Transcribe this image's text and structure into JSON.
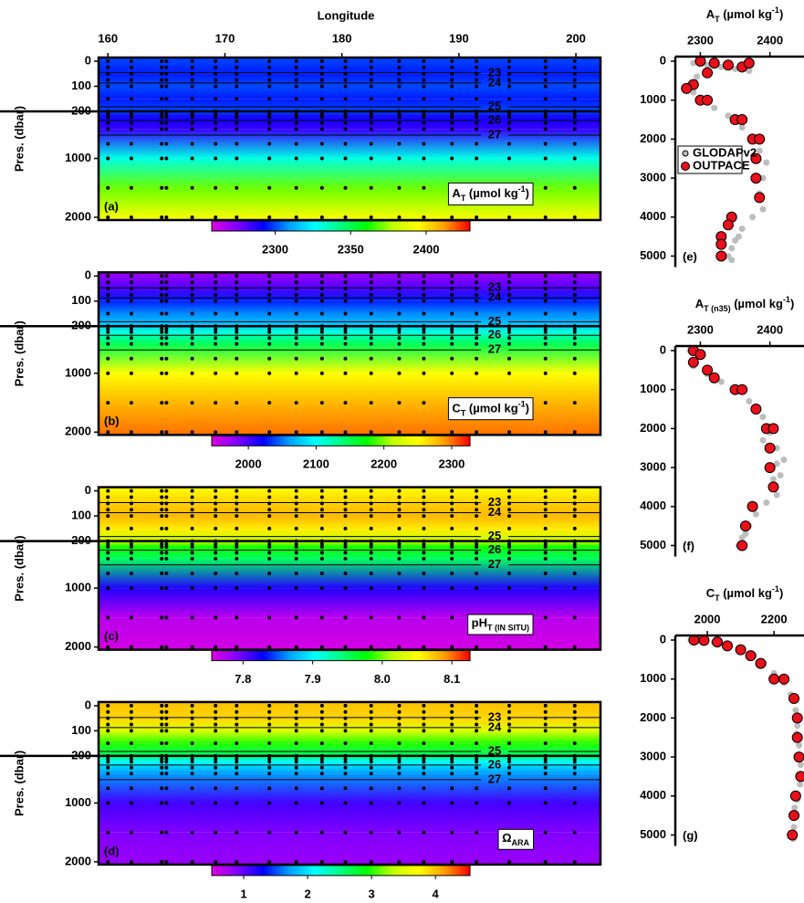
{
  "chart_data": [
    {
      "type": "contour",
      "label": "(a)",
      "var_label": [
        {
          "text": "A"
        },
        {
          "text": "T",
          "style": "sub"
        },
        {
          "text": " (µmol kg"
        },
        {
          "text": "-1",
          "style": "sup"
        },
        {
          "text": ")"
        }
      ],
      "xlabel": "Longitude",
      "xlim": [
        159.2,
        202.1
      ],
      "xticks": [
        160,
        170,
        180,
        190,
        200
      ],
      "ylabel": "Pres. (dbar)",
      "ylim": [
        0,
        2000
      ],
      "ybreak": 200,
      "yticks": [
        0,
        100,
        200,
        1000,
        2000
      ],
      "stations": [
        160,
        162,
        164.6,
        165,
        167.2,
        169.2,
        171,
        173.8,
        176.1,
        178.3,
        180.3,
        182.5,
        184.9,
        187,
        189.4,
        191.5,
        194.3,
        197.4,
        199.9
      ],
      "sample_pressures": [
        0,
        25,
        50,
        75,
        100,
        150,
        200,
        250,
        300,
        400,
        500,
        750,
        1000,
        1500,
        2000
      ],
      "field": {
        "pressure": [
          0,
          50,
          100,
          150,
          200,
          300,
          500,
          1000,
          1500,
          2000
        ],
        "values": [
          2300,
          2295,
          2300,
          2295,
          2300,
          2290,
          2285,
          2330,
          2370,
          2395
        ]
      },
      "isopycnals": [
        {
          "sigma": 23,
          "pressure": 47
        },
        {
          "sigma": 24,
          "pressure": 87
        },
        {
          "sigma": 25,
          "pressure": 182
        },
        {
          "sigma": 26,
          "pressure": 355
        },
        {
          "sigma": 27,
          "pressure": 603
        }
      ],
      "colormap": [
        "#e000e0",
        "#8000ff",
        "#0000ff",
        "#00a0ff",
        "#00ffff",
        "#00ff80",
        "#00ff00",
        "#c0ff00",
        "#ffff00",
        "#ffa000",
        "#ff0000"
      ],
      "clim": [
        2258,
        2429
      ],
      "cticks": [
        2300,
        2350,
        2400
      ]
    },
    {
      "type": "contour",
      "label": "(b)",
      "var_label": [
        {
          "text": "C"
        },
        {
          "text": "T",
          "style": "sub"
        },
        {
          "text": " (µmol kg"
        },
        {
          "text": "-1",
          "style": "sup"
        },
        {
          "text": ")"
        }
      ],
      "xlim": [
        159.2,
        202.1
      ],
      "ylabel": "Pres. (dbar)",
      "ylim": [
        0,
        2000
      ],
      "ybreak": 200,
      "yticks": [
        0,
        100,
        200,
        1000,
        2000
      ],
      "stations": [
        160,
        162,
        164.6,
        165,
        167.2,
        169.2,
        171,
        173.8,
        176.1,
        178.3,
        180.3,
        182.5,
        184.9,
        187,
        189.4,
        191.5,
        194.3,
        197.4,
        199.9
      ],
      "sample_pressures": [
        0,
        25,
        50,
        75,
        100,
        150,
        200,
        250,
        300,
        400,
        500,
        750,
        1000,
        1500,
        2000
      ],
      "field": {
        "pressure": [
          0,
          50,
          100,
          150,
          200,
          300,
          500,
          1000,
          1500,
          2000
        ],
        "values": [
          1970,
          2000,
          2030,
          2055,
          2080,
          2110,
          2150,
          2250,
          2280,
          2300
        ]
      },
      "isopycnals": [
        {
          "sigma": 23,
          "pressure": 47
        },
        {
          "sigma": 24,
          "pressure": 87
        },
        {
          "sigma": 25,
          "pressure": 182
        },
        {
          "sigma": 26,
          "pressure": 355
        },
        {
          "sigma": 27,
          "pressure": 603
        }
      ],
      "colormap": [
        "#e000e0",
        "#8000ff",
        "#0000ff",
        "#00a0ff",
        "#00ffff",
        "#00ff80",
        "#00ff00",
        "#c0ff00",
        "#ffff00",
        "#ffa000",
        "#ff0000"
      ],
      "clim": [
        1946,
        2327
      ],
      "cticks": [
        2000,
        2100,
        2200,
        2300
      ]
    },
    {
      "type": "contour",
      "label": "(c)",
      "var_label": [
        {
          "text": "pH"
        },
        {
          "text": "T (IN SITU)",
          "style": "sub"
        }
      ],
      "xlim": [
        159.2,
        202.1
      ],
      "ylabel": "Pres. (dbar)",
      "ylim": [
        0,
        2000
      ],
      "ybreak": 200,
      "yticks": [
        0,
        100,
        200,
        1000,
        2000
      ],
      "stations": [
        160,
        162,
        164.6,
        165,
        167.2,
        169.2,
        171,
        173.8,
        176.1,
        178.3,
        180.3,
        182.5,
        184.9,
        187,
        189.4,
        191.5,
        194.3,
        197.4,
        199.9
      ],
      "sample_pressures": [
        0,
        25,
        50,
        75,
        100,
        150,
        200,
        250,
        300,
        400,
        500,
        750,
        1000,
        1500,
        2000
      ],
      "field": {
        "pressure": [
          0,
          50,
          100,
          150,
          200,
          300,
          500,
          1000,
          1500,
          2000
        ],
        "values": [
          8.05,
          8.07,
          8.08,
          8.06,
          8.02,
          7.98,
          7.95,
          7.82,
          7.77,
          7.76
        ]
      },
      "isopycnals": [
        {
          "sigma": 23,
          "pressure": 47
        },
        {
          "sigma": 24,
          "pressure": 87
        },
        {
          "sigma": 25,
          "pressure": 182
        },
        {
          "sigma": 26,
          "pressure": 355
        },
        {
          "sigma": 27,
          "pressure": 603
        }
      ],
      "colormap": [
        "#e000e0",
        "#8000ff",
        "#0000ff",
        "#00a0ff",
        "#00ffff",
        "#00ff80",
        "#00ff00",
        "#c0ff00",
        "#ffff00",
        "#ffa000",
        "#ff0000"
      ],
      "clim": [
        7.755,
        8.126
      ],
      "cticks": [
        7.8,
        7.9,
        {
          "value": 8,
          "label": "8.0"
        },
        8.1
      ]
    },
    {
      "type": "contour",
      "label": "(d)",
      "var_label": [
        {
          "text": "Ω"
        },
        {
          "text": "ARA",
          "style": "sub"
        }
      ],
      "xlim": [
        159.2,
        202.1
      ],
      "ylabel": "Pres. (dbar)",
      "ylim": [
        0,
        2000
      ],
      "ybreak": 200,
      "yticks": [
        0,
        100,
        200,
        1000,
        2000
      ],
      "stations": [
        160,
        162,
        164.6,
        165,
        167.2,
        169.2,
        171,
        173.8,
        176.1,
        178.3,
        180.3,
        182.5,
        184.9,
        187,
        189.4,
        191.5,
        194.3,
        197.4,
        199.9
      ],
      "sample_pressures": [
        0,
        25,
        50,
        75,
        100,
        150,
        200,
        250,
        300,
        400,
        500,
        750,
        1000,
        1500,
        2000
      ],
      "field": {
        "pressure": [
          0,
          50,
          100,
          150,
          200,
          300,
          500,
          1000,
          1500,
          2000
        ],
        "values": [
          4.0,
          3.9,
          3.5,
          3.0,
          2.6,
          2.1,
          1.7,
          1.1,
          0.9,
          0.8
        ]
      },
      "isopycnals": [
        {
          "sigma": 23,
          "pressure": 47
        },
        {
          "sigma": 24,
          "pressure": 87
        },
        {
          "sigma": 25,
          "pressure": 182
        },
        {
          "sigma": 26,
          "pressure": 355
        },
        {
          "sigma": 27,
          "pressure": 603
        }
      ],
      "colormap": [
        "#e000e0",
        "#8000ff",
        "#0000ff",
        "#00a0ff",
        "#00ffff",
        "#00ff80",
        "#00ff00",
        "#c0ff00",
        "#ffff00",
        "#ffa000",
        "#ff0000"
      ],
      "clim": [
        0.5,
        4.54
      ],
      "cticks": [
        1,
        2,
        3,
        4
      ]
    },
    {
      "type": "scatter",
      "label": "(e)",
      "title": [
        {
          "text": "A"
        },
        {
          "text": "T",
          "style": "sub"
        },
        {
          "text": " (µmol kg"
        },
        {
          "text": "-1",
          "style": "sup"
        },
        {
          "text": ")"
        }
      ],
      "xlim": [
        2264,
        2449
      ],
      "xticks": [
        2300,
        2400
      ],
      "ylim": [
        0,
        5235
      ],
      "yticks": [
        0,
        1000,
        2000,
        3000,
        4000,
        5000
      ],
      "legend": "center-left",
      "series": [
        {
          "name": "GLODAPv2",
          "color": "#bdbdbd",
          "x": [
            2290,
            2310,
            2330,
            2350,
            2370,
            2295,
            2285,
            2290,
            2300,
            2320,
            2340,
            2360,
            2375,
            2385,
            2395,
            2390,
            2385,
            2390,
            2375,
            2360,
            2350,
            2345,
            2340,
            2345,
            2355
          ],
          "y": [
            50,
            100,
            150,
            200,
            250,
            400,
            600,
            800,
            1000,
            1200,
            1400,
            1700,
            2000,
            2300,
            2600,
            3000,
            3400,
            3800,
            4000,
            4300,
            4600,
            4800,
            5000,
            5100,
            4500
          ]
        },
        {
          "name": "OUTPACE",
          "color": "#e8101a",
          "x": [
            2300,
            2320,
            2340,
            2360,
            2370,
            2310,
            2290,
            2280,
            2300,
            2310,
            2350,
            2360,
            2375,
            2385,
            2380,
            2380,
            2385,
            2345,
            2340,
            2330,
            2330,
            2330
          ],
          "y": [
            0,
            50,
            100,
            150,
            50,
            300,
            600,
            700,
            1000,
            1000,
            1500,
            1500,
            2000,
            2000,
            2500,
            3000,
            3500,
            4000,
            4200,
            4500,
            4700,
            5000
          ]
        }
      ]
    },
    {
      "type": "scatter",
      "label": "(f)",
      "title": [
        {
          "text": "A"
        },
        {
          "text": "T (n35)",
          "style": "sub"
        },
        {
          "text": " (µmol  kg"
        },
        {
          "text": "-1",
          "style": "sup"
        },
        {
          "text": ")"
        }
      ],
      "xlim": [
        2264,
        2449
      ],
      "xticks": [
        2300,
        2400
      ],
      "ylim": [
        0,
        5235
      ],
      "yticks": [
        0,
        1000,
        2000,
        3000,
        4000,
        5000
      ],
      "series": [
        {
          "name": "GLODAPv2",
          "color": "#bdbdbd",
          "x": [
            2285,
            2300,
            2290,
            2310,
            2330,
            2350,
            2370,
            2390,
            2400,
            2410,
            2410,
            2405,
            2410,
            2395,
            2380,
            2370,
            2360,
            2355,
            2365,
            2415,
            2390,
            2420
          ],
          "y": [
            0,
            150,
            400,
            600,
            800,
            1000,
            1300,
            1700,
            2100,
            2500,
            2900,
            3300,
            3700,
            3900,
            4200,
            4500,
            4800,
            5000,
            4700,
            3200,
            2300,
            2800
          ]
        },
        {
          "name": "OUTPACE",
          "color": "#e8101a",
          "x": [
            2290,
            2300,
            2290,
            2310,
            2320,
            2350,
            2360,
            2380,
            2395,
            2405,
            2400,
            2400,
            2405,
            2375,
            2365,
            2360
          ],
          "y": [
            0,
            100,
            300,
            500,
            700,
            1000,
            1000,
            1500,
            2000,
            2000,
            2500,
            3000,
            3500,
            4000,
            4500,
            5000
          ]
        }
      ]
    },
    {
      "type": "scatter",
      "label": "(g)",
      "title": [
        {
          "text": "C"
        },
        {
          "text": "T",
          "style": "sub"
        },
        {
          "text": " (µmol  kg"
        },
        {
          "text": "-1",
          "style": "sup"
        },
        {
          "text": ")"
        }
      ],
      "xlim": [
        1904,
        2290
      ],
      "xticks": [
        2000,
        2200
      ],
      "ylim": [
        0,
        5235
      ],
      "yticks": [
        0,
        1000,
        2000,
        3000,
        4000,
        5000
      ],
      "series": [
        {
          "name": "GLODAPv2",
          "color": "#bdbdbd",
          "x": [
            1950,
            1980,
            2020,
            2060,
            2100,
            2140,
            2170,
            2200,
            2230,
            2250,
            2265,
            2270,
            2275,
            2280,
            2278,
            2270,
            2265,
            2260,
            2258,
            2262,
            2275,
            2268
          ],
          "y": [
            0,
            20,
            60,
            120,
            250,
            400,
            600,
            850,
            1100,
            1400,
            1800,
            2200,
            2700,
            3200,
            3700,
            4100,
            4500,
            4800,
            5100,
            4300,
            3000,
            2400
          ]
        },
        {
          "name": "OUTPACE",
          "color": "#e8101a",
          "x": [
            1960,
            1990,
            2030,
            2060,
            2100,
            2130,
            2160,
            2200,
            2230,
            2260,
            2270,
            2270,
            2275,
            2280,
            2265,
            2260,
            2255
          ],
          "y": [
            0,
            10,
            50,
            150,
            250,
            400,
            600,
            1000,
            1000,
            1500,
            2000,
            2500,
            3000,
            3500,
            4000,
            4500,
            5000
          ]
        }
      ]
    }
  ]
}
